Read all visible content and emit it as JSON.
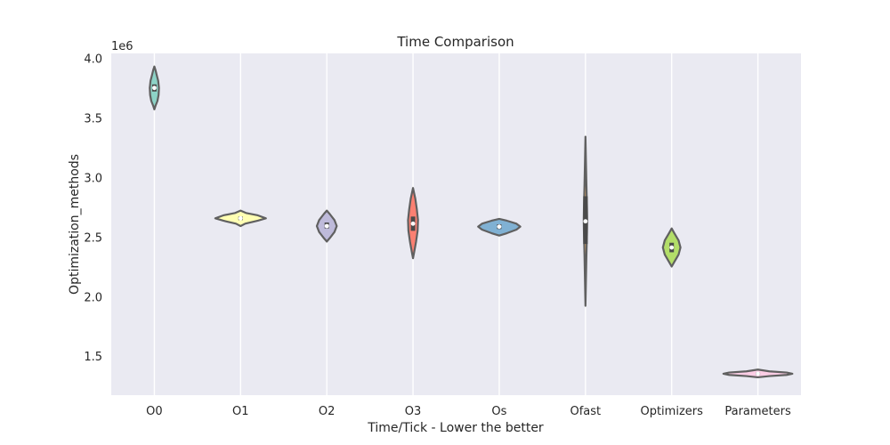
{
  "chart_data": {
    "type": "violin",
    "title": "Time Comparison",
    "xlabel": "Time/Tick - Lower the better",
    "ylabel": "Optimization_methods",
    "y_offset_label": "1e6",
    "y_scale_factor": 1000000,
    "ylim": [
      1.18,
      4.05
    ],
    "yticks": [
      1.5,
      2.0,
      2.5,
      3.0,
      3.5,
      4.0
    ],
    "ytick_labels": [
      "1.5",
      "2.0",
      "2.5",
      "3.0",
      "3.5",
      "4.0"
    ],
    "grid": true,
    "legend": "none",
    "categories": [
      "O0",
      "O1",
      "O2",
      "O3",
      "Os",
      "Ofast",
      "Optimizers",
      "Parameters"
    ],
    "violins": [
      {
        "category": "O0",
        "color": "#8dd3c7",
        "profile": [
          [
            3.58,
            0
          ],
          [
            3.61,
            0.03
          ],
          [
            3.65,
            0.08
          ],
          [
            3.7,
            0.11
          ],
          [
            3.76,
            0.12
          ],
          [
            3.82,
            0.1
          ],
          [
            3.87,
            0.06
          ],
          [
            3.91,
            0.03
          ],
          [
            3.94,
            0
          ]
        ],
        "q1": 3.73,
        "median": 3.76,
        "q3": 3.79
      },
      {
        "category": "O1",
        "color": "#ffffb3",
        "profile": [
          [
            2.6,
            0
          ],
          [
            2.62,
            0.12
          ],
          [
            2.645,
            0.45
          ],
          [
            2.665,
            0.66
          ],
          [
            2.69,
            0.45
          ],
          [
            2.71,
            0.14
          ],
          [
            2.73,
            0
          ]
        ],
        "q1": 2.65,
        "median": 2.665,
        "q3": 2.68
      },
      {
        "category": "O2",
        "color": "#bebada",
        "profile": [
          [
            2.47,
            0
          ],
          [
            2.5,
            0.08
          ],
          [
            2.55,
            0.2
          ],
          [
            2.6,
            0.26
          ],
          [
            2.65,
            0.2
          ],
          [
            2.7,
            0.08
          ],
          [
            2.73,
            0
          ]
        ],
        "q1": 2.58,
        "median": 2.6,
        "q3": 2.63
      },
      {
        "category": "O3",
        "color": "#fb8072",
        "profile": [
          [
            2.33,
            0
          ],
          [
            2.38,
            0.03
          ],
          [
            2.47,
            0.08
          ],
          [
            2.56,
            0.12
          ],
          [
            2.65,
            0.13
          ],
          [
            2.74,
            0.1
          ],
          [
            2.83,
            0.06
          ],
          [
            2.92,
            0
          ]
        ],
        "q1": 2.56,
        "median": 2.62,
        "q3": 2.68
      },
      {
        "category": "Os",
        "color": "#80b1d3",
        "profile": [
          [
            2.52,
            0
          ],
          [
            2.54,
            0.2
          ],
          [
            2.57,
            0.45
          ],
          [
            2.595,
            0.55
          ],
          [
            2.62,
            0.45
          ],
          [
            2.645,
            0.2
          ],
          [
            2.66,
            0
          ]
        ],
        "q1": 2.575,
        "median": 2.595,
        "q3": 2.615
      },
      {
        "category": "Ofast",
        "color": "#fdb462",
        "profile": [
          [
            1.93,
            0
          ],
          [
            2.1,
            0.01
          ],
          [
            2.35,
            0.025
          ],
          [
            2.55,
            0.04
          ],
          [
            2.65,
            0.045
          ],
          [
            2.75,
            0.04
          ],
          [
            2.95,
            0.025
          ],
          [
            3.15,
            0.012
          ],
          [
            3.35,
            0
          ]
        ],
        "q1": 2.45,
        "median": 2.64,
        "q3": 2.85
      },
      {
        "category": "Optimizers",
        "color": "#b3de69",
        "profile": [
          [
            2.26,
            0
          ],
          [
            2.3,
            0.07
          ],
          [
            2.36,
            0.18
          ],
          [
            2.42,
            0.23
          ],
          [
            2.48,
            0.18
          ],
          [
            2.54,
            0.07
          ],
          [
            2.58,
            0
          ]
        ],
        "q1": 2.38,
        "median": 2.42,
        "q3": 2.46
      },
      {
        "category": "Parameters",
        "color": "#fccde5",
        "profile": [
          [
            1.33,
            0
          ],
          [
            1.34,
            0.3
          ],
          [
            1.35,
            0.75
          ],
          [
            1.36,
            0.9
          ],
          [
            1.37,
            0.75
          ],
          [
            1.38,
            0.3
          ],
          [
            1.395,
            0
          ]
        ],
        "q1": 1.35,
        "median": 1.36,
        "q3": 1.37
      }
    ]
  }
}
